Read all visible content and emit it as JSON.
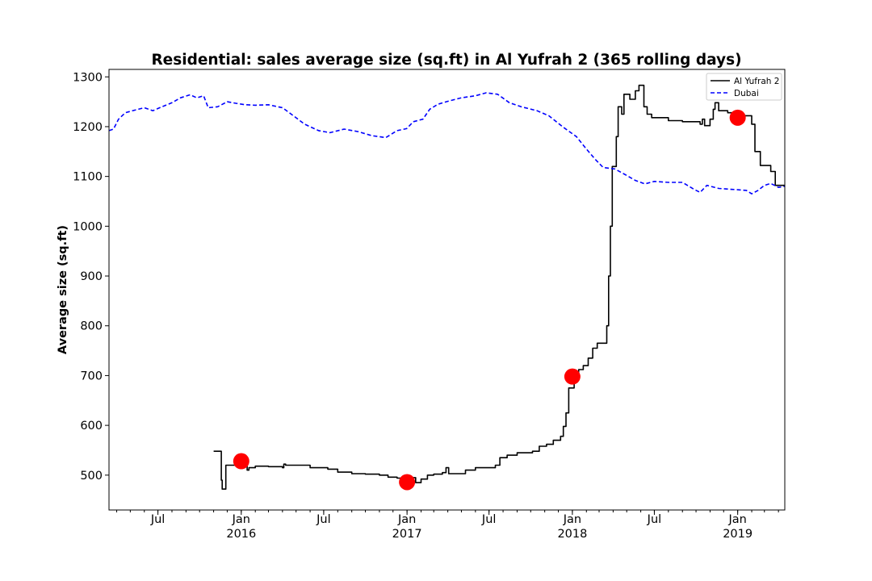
{
  "chart_data": {
    "type": "line",
    "title": "Residential: sales average size (sq.ft) in Al Yufrah 2 (365 rolling days)",
    "xlabel": "",
    "ylabel": "Average size (sq.ft)",
    "xlim": [
      "2015-03-15",
      "2019-04-15"
    ],
    "ylim": [
      430,
      1315
    ],
    "yticks": [
      500,
      600,
      700,
      800,
      900,
      1000,
      1100,
      1200,
      1300
    ],
    "xticks": [
      {
        "date": "2015-07-01",
        "label": "Jul",
        "year": ""
      },
      {
        "date": "2016-01-01",
        "label": "Jan",
        "year": "2016"
      },
      {
        "date": "2016-07-01",
        "label": "Jul",
        "year": ""
      },
      {
        "date": "2017-01-01",
        "label": "Jan",
        "year": "2017"
      },
      {
        "date": "2017-07-01",
        "label": "Jul",
        "year": ""
      },
      {
        "date": "2018-01-01",
        "label": "Jan",
        "year": "2018"
      },
      {
        "date": "2018-07-01",
        "label": "Jul",
        "year": ""
      },
      {
        "date": "2019-01-01",
        "label": "Jan",
        "year": "2019"
      }
    ],
    "legend_position": "top-right",
    "grid": false,
    "series": [
      {
        "name": "Al Yufrah 2",
        "color": "#000000",
        "style": "solid",
        "step": true,
        "points": [
          [
            "2015-11-01",
            548
          ],
          [
            "2015-11-17",
            548
          ],
          [
            "2015-11-18",
            490
          ],
          [
            "2015-11-20",
            472
          ],
          [
            "2015-11-27",
            472
          ],
          [
            "2015-11-28",
            520
          ],
          [
            "2016-01-08",
            520
          ],
          [
            "2016-01-14",
            510
          ],
          [
            "2016-01-18",
            515
          ],
          [
            "2016-01-28",
            515
          ],
          [
            "2016-02-01",
            518
          ],
          [
            "2016-03-01",
            517
          ],
          [
            "2016-04-01",
            515
          ],
          [
            "2016-04-04",
            522
          ],
          [
            "2016-04-08",
            520
          ],
          [
            "2016-05-15",
            520
          ],
          [
            "2016-06-01",
            515
          ],
          [
            "2016-07-10",
            512
          ],
          [
            "2016-08-01",
            506
          ],
          [
            "2016-09-01",
            503
          ],
          [
            "2016-10-01",
            502
          ],
          [
            "2016-11-01",
            500
          ],
          [
            "2016-11-20",
            496
          ],
          [
            "2016-12-10",
            494
          ],
          [
            "2016-12-28",
            488
          ],
          [
            "2017-01-08",
            487
          ],
          [
            "2017-01-14",
            495
          ],
          [
            "2017-01-20",
            485
          ],
          [
            "2017-02-01",
            492
          ],
          [
            "2017-02-15",
            500
          ],
          [
            "2017-03-01",
            502
          ],
          [
            "2017-03-20",
            505
          ],
          [
            "2017-03-28",
            515
          ],
          [
            "2017-04-03",
            503
          ],
          [
            "2017-04-20",
            503
          ],
          [
            "2017-05-10",
            510
          ],
          [
            "2017-06-01",
            515
          ],
          [
            "2017-07-15",
            520
          ],
          [
            "2017-07-25",
            535
          ],
          [
            "2017-08-10",
            540
          ],
          [
            "2017-09-01",
            545
          ],
          [
            "2017-10-05",
            548
          ],
          [
            "2017-10-20",
            558
          ],
          [
            "2017-11-05",
            562
          ],
          [
            "2017-11-20",
            570
          ],
          [
            "2017-12-06",
            578
          ],
          [
            "2017-12-12",
            598
          ],
          [
            "2017-12-18",
            625
          ],
          [
            "2017-12-24",
            675
          ],
          [
            "2018-01-05",
            700
          ],
          [
            "2018-01-15",
            712
          ],
          [
            "2018-01-25",
            720
          ],
          [
            "2018-02-05",
            735
          ],
          [
            "2018-02-15",
            755
          ],
          [
            "2018-02-25",
            765
          ],
          [
            "2018-03-10",
            765
          ],
          [
            "2018-03-18",
            800
          ],
          [
            "2018-03-22",
            900
          ],
          [
            "2018-03-26",
            1000
          ],
          [
            "2018-03-30",
            1120
          ],
          [
            "2018-04-08",
            1180
          ],
          [
            "2018-04-12",
            1240
          ],
          [
            "2018-04-20",
            1225
          ],
          [
            "2018-04-25",
            1265
          ],
          [
            "2018-05-08",
            1255
          ],
          [
            "2018-05-20",
            1272
          ],
          [
            "2018-05-28",
            1283
          ],
          [
            "2018-06-08",
            1240
          ],
          [
            "2018-06-15",
            1225
          ],
          [
            "2018-06-25",
            1218
          ],
          [
            "2018-08-01",
            1212
          ],
          [
            "2018-09-01",
            1210
          ],
          [
            "2018-10-10",
            1205
          ],
          [
            "2018-10-15",
            1215
          ],
          [
            "2018-10-20",
            1202
          ],
          [
            "2018-11-01",
            1215
          ],
          [
            "2018-11-08",
            1235
          ],
          [
            "2018-11-12",
            1248
          ],
          [
            "2018-11-20",
            1232
          ],
          [
            "2018-12-10",
            1228
          ],
          [
            "2018-12-22",
            1222
          ],
          [
            "2019-01-20",
            1222
          ],
          [
            "2019-02-01",
            1205
          ],
          [
            "2019-02-08",
            1150
          ],
          [
            "2019-02-20",
            1122
          ],
          [
            "2019-03-15",
            1110
          ],
          [
            "2019-03-25",
            1082
          ],
          [
            "2019-04-15",
            1082
          ]
        ]
      },
      {
        "name": "Dubai",
        "color": "#0000ff",
        "style": "dashed",
        "step": false,
        "points": [
          [
            "2015-03-15",
            1192
          ],
          [
            "2015-03-25",
            1195
          ],
          [
            "2015-04-05",
            1215
          ],
          [
            "2015-04-20",
            1228
          ],
          [
            "2015-05-10",
            1233
          ],
          [
            "2015-06-01",
            1238
          ],
          [
            "2015-06-20",
            1232
          ],
          [
            "2015-07-10",
            1240
          ],
          [
            "2015-08-01",
            1248
          ],
          [
            "2015-08-20",
            1258
          ],
          [
            "2015-09-10",
            1264
          ],
          [
            "2015-09-25",
            1258
          ],
          [
            "2015-10-10",
            1262
          ],
          [
            "2015-10-20",
            1238
          ],
          [
            "2015-11-10",
            1240
          ],
          [
            "2015-12-01",
            1250
          ],
          [
            "2015-12-20",
            1247
          ],
          [
            "2016-01-10",
            1244
          ],
          [
            "2016-02-01",
            1243
          ],
          [
            "2016-03-01",
            1244
          ],
          [
            "2016-04-01",
            1238
          ],
          [
            "2016-04-25",
            1222
          ],
          [
            "2016-05-20",
            1205
          ],
          [
            "2016-06-20",
            1192
          ],
          [
            "2016-07-15",
            1188
          ],
          [
            "2016-08-15",
            1195
          ],
          [
            "2016-09-15",
            1190
          ],
          [
            "2016-10-15",
            1182
          ],
          [
            "2016-11-15",
            1178
          ],
          [
            "2016-12-10",
            1192
          ],
          [
            "2016-12-31",
            1196
          ],
          [
            "2017-01-15",
            1210
          ],
          [
            "2017-02-05",
            1215
          ],
          [
            "2017-02-20",
            1235
          ],
          [
            "2017-03-10",
            1245
          ],
          [
            "2017-04-05",
            1252
          ],
          [
            "2017-05-01",
            1258
          ],
          [
            "2017-06-01",
            1262
          ],
          [
            "2017-06-25",
            1268
          ],
          [
            "2017-07-20",
            1265
          ],
          [
            "2017-08-15",
            1248
          ],
          [
            "2017-09-10",
            1240
          ],
          [
            "2017-10-15",
            1232
          ],
          [
            "2017-11-10",
            1222
          ],
          [
            "2017-12-10",
            1200
          ],
          [
            "2018-01-10",
            1180
          ],
          [
            "2018-02-01",
            1155
          ],
          [
            "2018-02-20",
            1135
          ],
          [
            "2018-03-10",
            1118
          ],
          [
            "2018-04-05",
            1115
          ],
          [
            "2018-05-01",
            1102
          ],
          [
            "2018-05-20",
            1092
          ],
          [
            "2018-06-10",
            1085
          ],
          [
            "2018-07-01",
            1090
          ],
          [
            "2018-08-01",
            1088
          ],
          [
            "2018-09-01",
            1088
          ],
          [
            "2018-09-25",
            1075
          ],
          [
            "2018-10-10",
            1068
          ],
          [
            "2018-10-25",
            1082
          ],
          [
            "2018-11-20",
            1076
          ],
          [
            "2018-12-20",
            1074
          ],
          [
            "2019-01-20",
            1072
          ],
          [
            "2019-02-01",
            1065
          ],
          [
            "2019-02-15",
            1072
          ],
          [
            "2019-03-01",
            1082
          ],
          [
            "2019-03-15",
            1086
          ],
          [
            "2019-04-01",
            1078
          ],
          [
            "2019-04-15",
            1080
          ]
        ]
      }
    ],
    "markers": {
      "color": "#ff0000",
      "points": [
        [
          "2016-01-01",
          528
        ],
        [
          "2017-01-01",
          486
        ],
        [
          "2018-01-01",
          698
        ],
        [
          "2019-01-01",
          1218
        ]
      ]
    }
  }
}
